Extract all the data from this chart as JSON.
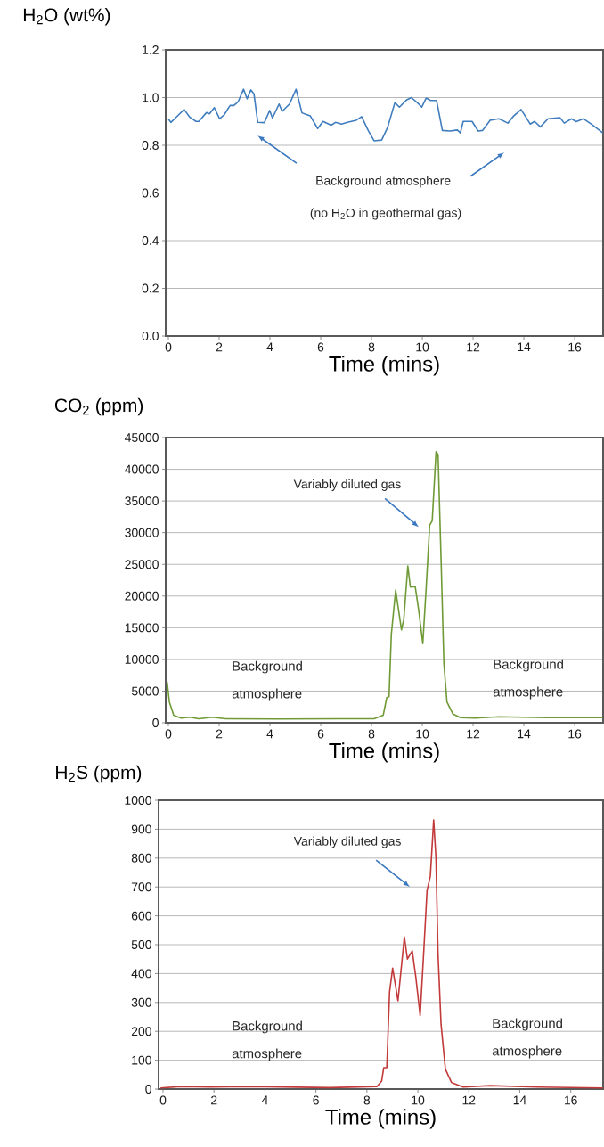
{
  "chart_data": [
    {
      "type": "line",
      "ylabel": "H$_{2}$O (wt%)",
      "xlabel": "Time (mins)",
      "xlim": [
        -0.105,
        17.12
      ],
      "ylim": [
        0,
        1.2
      ],
      "xticks": [
        0,
        2,
        4,
        6,
        8,
        10,
        12,
        14,
        16
      ],
      "yticks": [
        {
          "value": 0,
          "label": "0.0"
        },
        0.2,
        0.4,
        0.6,
        0.8,
        {
          "value": 1.0,
          "label": "1.0"
        },
        1.2
      ],
      "grid": "y",
      "annotations": [
        "Background atmosphere",
        "(no H$_{2}$O in geothermal gas)"
      ],
      "series": [
        {
          "color": "#3f7dbf",
          "x": [
            0,
            0.1,
            0.39,
            0.62,
            0.85,
            1.09,
            1.2,
            1.5,
            1.62,
            1.81,
            2.02,
            2.2,
            2.43,
            2.58,
            2.75,
            2.96,
            3.1,
            3.25,
            3.37,
            3.52,
            3.78,
            3.99,
            4.1,
            4.36,
            4.48,
            4.77,
            5.03,
            5.26,
            5.41,
            5.59,
            5.88,
            6.09,
            6.41,
            6.58,
            6.82,
            7.05,
            7.4,
            7.61,
            7.87,
            8.1,
            8.4,
            8.63,
            8.92,
            9.1,
            9.39,
            9.57,
            9.8,
            9.98,
            10.15,
            10.33,
            10.56,
            10.79,
            11.09,
            11.38,
            11.5,
            11.61,
            11.96,
            12.2,
            12.37,
            12.67,
            13.02,
            13.37,
            13.6,
            13.89,
            14.25,
            14.42,
            14.65,
            14.95,
            15.42,
            15.59,
            15.88,
            16.06,
            16.35,
            16.65,
            17.11
          ],
          "values": [
            0.91,
            0.896,
            0.926,
            0.95,
            0.917,
            0.9,
            0.9,
            0.937,
            0.932,
            0.958,
            0.911,
            0.928,
            0.967,
            0.967,
            0.983,
            1.035,
            0.995,
            1.032,
            1.016,
            0.896,
            0.895,
            0.946,
            0.914,
            0.973,
            0.942,
            0.973,
            1.035,
            0.936,
            0.93,
            0.923,
            0.87,
            0.9,
            0.884,
            0.896,
            0.889,
            0.896,
            0.905,
            0.92,
            0.862,
            0.819,
            0.822,
            0.874,
            0.979,
            0.96,
            0.991,
            1.0,
            0.979,
            0.96,
            0.998,
            0.988,
            0.988,
            0.862,
            0.86,
            0.864,
            0.852,
            0.9,
            0.9,
            0.86,
            0.862,
            0.905,
            0.911,
            0.893,
            0.923,
            0.95,
            0.889,
            0.9,
            0.877,
            0.911,
            0.916,
            0.893,
            0.911,
            0.899,
            0.911,
            0.889,
            0.852
          ]
        }
      ]
    },
    {
      "type": "line",
      "ylabel": "CO$_{2}$ (ppm)",
      "xlabel": "Time (mins)",
      "xlim": [
        -0.105,
        17.12
      ],
      "ylim": [
        0,
        45000
      ],
      "xticks": [
        0,
        2,
        4,
        6,
        8,
        10,
        12,
        14,
        16
      ],
      "yticks": [
        0,
        5000,
        10000,
        15000,
        20000,
        25000,
        30000,
        35000,
        40000,
        45000
      ],
      "grid": "y",
      "annotations": [
        "Variably diluted gas",
        "Background atmosphere",
        "Background atmosphere"
      ],
      "series": [
        {
          "color": "#6f9a35",
          "x": [
            -0.05,
            0.04,
            0.21,
            0.5,
            0.85,
            1.2,
            1.73,
            2.26,
            4.36,
            6.7,
            8.1,
            8.46,
            8.6,
            8.69,
            8.78,
            8.95,
            9.18,
            9.27,
            9.43,
            9.53,
            9.72,
            9.86,
            10.02,
            10.15,
            10.29,
            10.39,
            10.54,
            10.62,
            10.74,
            10.85,
            10.97,
            11.2,
            11.5,
            12.08,
            13.02,
            14.9,
            17.11
          ],
          "values": [
            6500,
            3280,
            1190,
            730,
            870,
            640,
            870,
            640,
            590,
            640,
            640,
            1190,
            3970,
            4110,
            13960,
            20940,
            14660,
            16290,
            24750,
            21410,
            21500,
            17690,
            12480,
            21180,
            31170,
            31870,
            42790,
            42320,
            25590,
            9320,
            3280,
            1420,
            820,
            730,
            960,
            820,
            820
          ]
        }
      ]
    },
    {
      "type": "line",
      "ylabel": "H$_{2}$S (ppm)",
      "xlabel": "Time (mins)",
      "xlim": [
        -0.175,
        17.27
      ],
      "ylim": [
        0,
        1000
      ],
      "xticks": [
        0,
        2,
        4,
        6,
        8,
        10,
        12,
        14,
        16
      ],
      "yticks": [
        0,
        100,
        200,
        300,
        400,
        500,
        600,
        700,
        800,
        900,
        1000
      ],
      "grid": "y",
      "annotations": [
        "Variably diluted gas",
        "Background atmosphere",
        "Background atmosphere"
      ],
      "series": [
        {
          "color": "#c23a3a",
          "x": [
            -0.1,
            0.71,
            1.88,
            3.39,
            6.54,
            8.4,
            8.58,
            8.66,
            8.78,
            8.89,
            9.01,
            9.22,
            9.47,
            9.59,
            9.78,
            9.92,
            10.09,
            10.24,
            10.36,
            10.49,
            10.62,
            10.71,
            10.79,
            10.91,
            11.08,
            11.32,
            11.78,
            12.83,
            14.7,
            17.27
          ],
          "values": [
            4,
            9,
            7,
            9,
            5,
            9,
            28,
            74,
            74,
            337,
            419,
            306,
            527,
            450,
            479,
            388,
            254,
            491,
            687,
            738,
            932,
            800,
            471,
            224,
            69,
            23,
            7,
            12,
            7,
            4
          ]
        }
      ]
    }
  ]
}
